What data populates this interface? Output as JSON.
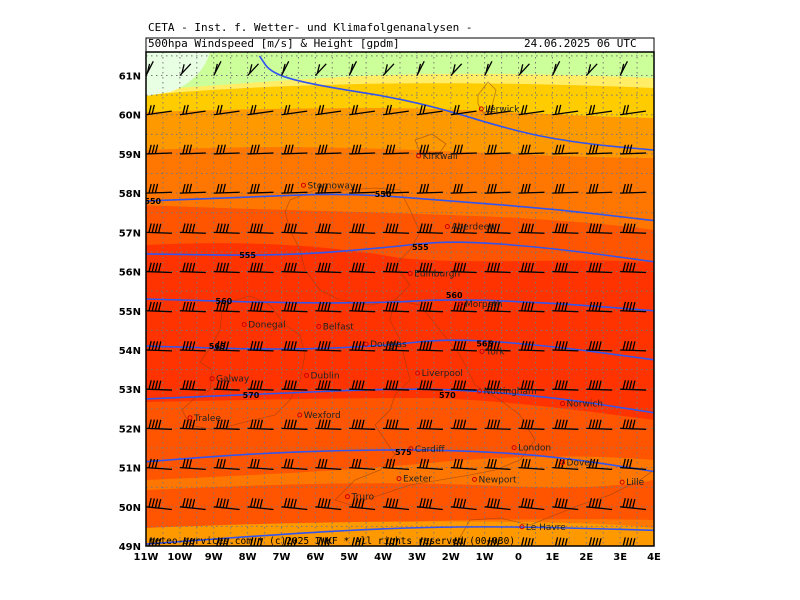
{
  "header": {
    "institute": "CETA - Inst. f. Wetter- und Klimafolgenanalysen -",
    "product": "500hpa Windspeed [m/s] & Height [gpdm]",
    "datetime": "24.06.2025 06 UTC"
  },
  "footer": {
    "copyright": "meteo-services.com * (c)2025 IWKF * All rights reserved (00+030)"
  },
  "map": {
    "lon_labels": [
      "11W",
      "10W",
      "9W",
      "8W",
      "7W",
      "6W",
      "5W",
      "4W",
      "3W",
      "2W",
      "1W",
      "0",
      "1E",
      "2E",
      "3E",
      "4E"
    ],
    "lat_labels": [
      "49N",
      "50N",
      "51N",
      "52N",
      "53N",
      "54N",
      "55N",
      "56N",
      "57N",
      "58N",
      "59N",
      "60N",
      "61N"
    ],
    "color_bands": [
      "#ff3300",
      "#ff5500",
      "#ff7700",
      "#ff9900",
      "#ffcc00",
      "#ffee66",
      "#ccff99",
      "#e9ffe4"
    ],
    "contour_color": "#3355ee",
    "contours": [
      {
        "value": "550",
        "pts": [
          [
            -11,
            57.8
          ],
          [
            -8,
            57.9
          ],
          [
            -5,
            58.0
          ],
          [
            -2,
            57.8
          ],
          [
            1,
            57.6
          ],
          [
            4,
            57.3
          ]
        ]
      },
      {
        "value": "555",
        "pts": [
          [
            -11,
            56.45
          ],
          [
            -7,
            56.4
          ],
          [
            -4,
            56.6
          ],
          [
            -2,
            56.8
          ],
          [
            1,
            56.6
          ],
          [
            4,
            56.25
          ]
        ]
      },
      {
        "value": "560",
        "pts": [
          [
            -11,
            55.3
          ],
          [
            -7,
            55.2
          ],
          [
            -4,
            55.2
          ],
          [
            -2,
            55.3
          ],
          [
            1,
            55.2
          ],
          [
            4,
            55.0
          ]
        ]
      },
      {
        "value": "565",
        "pts": [
          [
            -11,
            54.1
          ],
          [
            -7,
            54.0
          ],
          [
            -4,
            54.1
          ],
          [
            -2,
            54.3
          ],
          [
            1,
            54.1
          ],
          [
            4,
            53.75
          ]
        ]
      },
      {
        "value": "570",
        "pts": [
          [
            -11,
            52.75
          ],
          [
            -7,
            52.9
          ],
          [
            -4,
            53.0
          ],
          [
            -2,
            53.0
          ],
          [
            1,
            52.8
          ],
          [
            4,
            52.4
          ]
        ]
      },
      {
        "value": "575",
        "pts": [
          [
            -11,
            51.15
          ],
          [
            -8,
            51.35
          ],
          [
            -5,
            51.45
          ],
          [
            -2,
            51.45
          ],
          [
            1,
            51.3
          ],
          [
            4,
            50.9
          ]
        ]
      },
      {
        "value": "",
        "pts": [
          [
            -11,
            49.05
          ],
          [
            -7,
            49.3
          ],
          [
            -4,
            49.45
          ],
          [
            -1,
            49.5
          ],
          [
            2,
            49.45
          ],
          [
            4,
            49.4
          ]
        ]
      },
      {
        "value": "",
        "pts": [
          [
            -7.65,
            61.5
          ],
          [
            -7.3,
            61.05
          ],
          [
            -6,
            60.75
          ],
          [
            -3,
            60.35
          ],
          [
            0,
            59.55
          ],
          [
            2,
            59.25
          ],
          [
            4,
            59.1
          ]
        ]
      }
    ],
    "contour_labels": [
      {
        "text": "550",
        "lon": -10.8,
        "lat": 57.8
      },
      {
        "text": "550",
        "lon": -4.0,
        "lat": 57.98
      },
      {
        "text": "555",
        "lon": -8.0,
        "lat": 56.42
      },
      {
        "text": "555",
        "lon": -2.9,
        "lat": 56.63
      },
      {
        "text": "560",
        "lon": -8.7,
        "lat": 55.25
      },
      {
        "text": "560",
        "lon": -1.9,
        "lat": 55.4
      },
      {
        "text": "565",
        "lon": -8.9,
        "lat": 54.1
      },
      {
        "text": "565",
        "lon": -1.0,
        "lat": 54.17
      },
      {
        "text": "570",
        "lon": -7.9,
        "lat": 52.85
      },
      {
        "text": "570",
        "lon": -2.1,
        "lat": 52.85
      },
      {
        "text": "575",
        "lon": -3.4,
        "lat": 51.4
      }
    ],
    "cities": [
      {
        "name": "Lerwick",
        "lon": -1.1,
        "lat": 60.15
      },
      {
        "name": "Kirkwall",
        "lon": -2.95,
        "lat": 58.95
      },
      {
        "name": "Stornoway",
        "lon": -6.35,
        "lat": 58.2
      },
      {
        "name": "Aberdeen",
        "lon": -2.1,
        "lat": 57.15
      },
      {
        "name": "Edinburgh",
        "lon": -3.2,
        "lat": 55.95
      },
      {
        "name": "Douglas",
        "lon": -4.5,
        "lat": 54.15
      },
      {
        "name": "Morpeth",
        "lon": -1.7,
        "lat": 55.17
      },
      {
        "name": "Donegal",
        "lon": -8.1,
        "lat": 54.65
      },
      {
        "name": "Belfast",
        "lon": -5.9,
        "lat": 54.6
      },
      {
        "name": "York",
        "lon": -1.08,
        "lat": 53.96
      },
      {
        "name": "Galway",
        "lon": -9.05,
        "lat": 53.27
      },
      {
        "name": "Dublin",
        "lon": -6.26,
        "lat": 53.35
      },
      {
        "name": "Liverpool",
        "lon": -2.98,
        "lat": 53.41
      },
      {
        "name": "Nottingham",
        "lon": -1.15,
        "lat": 52.95
      },
      {
        "name": "Norwich",
        "lon": 1.3,
        "lat": 52.63
      },
      {
        "name": "Tralee",
        "lon": -9.7,
        "lat": 52.27
      },
      {
        "name": "Wexford",
        "lon": -6.46,
        "lat": 52.34
      },
      {
        "name": "Cardiff",
        "lon": -3.18,
        "lat": 51.48
      },
      {
        "name": "London",
        "lon": -0.13,
        "lat": 51.51
      },
      {
        "name": "Dover",
        "lon": 1.3,
        "lat": 51.13
      },
      {
        "name": "Exeter",
        "lon": -3.53,
        "lat": 50.72
      },
      {
        "name": "Newport",
        "lon": -1.3,
        "lat": 50.7
      },
      {
        "name": "Lille",
        "lon": 3.06,
        "lat": 50.63
      },
      {
        "name": "Truro",
        "lon": -5.05,
        "lat": 50.26
      },
      {
        "name": "Le Havre",
        "lon": 0.1,
        "lat": 49.49
      }
    ]
  }
}
